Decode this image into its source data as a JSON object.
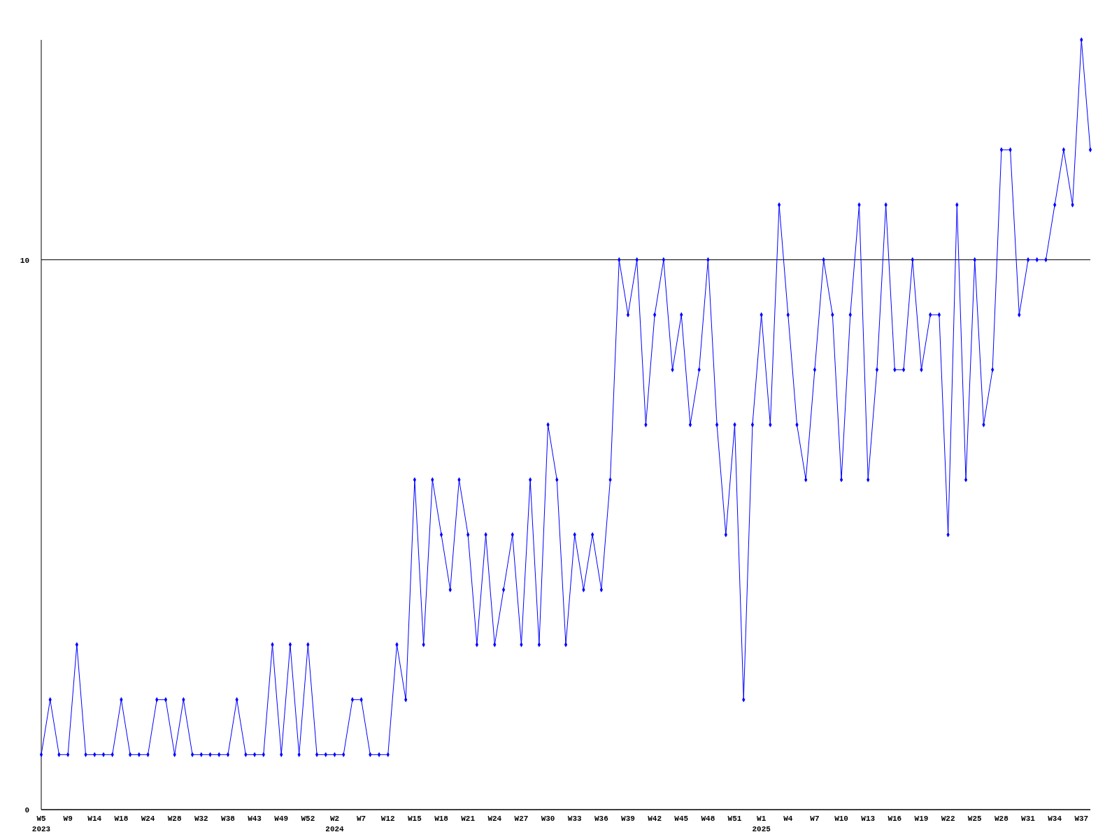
{
  "chart_data": {
    "type": "line",
    "categories": [
      "W5\n2023",
      null,
      null,
      "W9",
      null,
      null,
      "W14",
      null,
      null,
      "W18",
      null,
      null,
      "W24",
      null,
      null,
      "W28",
      null,
      null,
      "W32",
      null,
      null,
      "W38",
      null,
      null,
      "W43",
      null,
      null,
      "W49",
      null,
      null,
      "W52",
      null,
      null,
      "W2\n2024",
      null,
      null,
      "W7",
      null,
      null,
      "W12",
      null,
      null,
      "W15",
      null,
      null,
      "W18",
      null,
      null,
      "W21",
      null,
      null,
      "W24",
      null,
      null,
      "W27",
      null,
      null,
      "W30",
      null,
      null,
      "W33",
      null,
      null,
      "W36",
      null,
      null,
      "W39",
      null,
      null,
      "W42",
      null,
      null,
      "W45",
      null,
      null,
      "W48",
      null,
      null,
      "W51",
      null,
      null,
      "W1\n2025",
      null,
      null,
      "W4",
      null,
      null,
      "W7",
      null,
      null,
      "W10",
      null,
      null,
      "W13",
      null,
      null,
      "W16",
      null,
      null,
      "W19",
      null,
      null,
      "W22",
      null,
      null,
      "W25",
      null,
      null,
      "W28",
      null,
      null,
      "W31",
      null,
      null,
      "W34",
      null,
      null,
      "W37",
      null
    ],
    "series": [
      {
        "color": "#0000ff",
        "values": [
          1,
          2,
          1,
          1,
          3,
          1,
          1,
          1,
          1,
          2,
          1,
          1,
          1,
          2,
          2,
          1,
          2,
          1,
          1,
          1,
          1,
          1,
          2,
          1,
          1,
          1,
          3,
          1,
          3,
          1,
          3,
          1,
          1,
          1,
          1,
          2,
          2,
          1,
          1,
          1,
          3,
          2,
          6,
          3,
          6,
          5,
          4,
          6,
          5,
          3,
          5,
          3,
          4,
          5,
          3,
          6,
          3,
          7,
          6,
          3,
          5,
          4,
          5,
          4,
          6,
          10,
          9,
          10,
          7,
          9,
          10,
          8,
          9,
          7,
          8,
          10,
          7,
          5,
          7,
          2,
          7,
          9,
          7,
          11,
          9,
          7,
          6,
          8,
          10,
          9,
          6,
          9,
          11,
          6,
          8,
          11,
          8,
          8,
          10,
          8,
          9,
          9,
          5,
          11,
          6,
          10,
          7,
          8,
          12,
          12,
          9,
          10,
          10,
          10,
          11,
          12,
          11,
          14,
          12
        ]
      }
    ],
    "ylim": [
      0,
      14
    ],
    "yticks": [
      0,
      10
    ],
    "grid": "y",
    "marker": "diamond",
    "line_style": "solid"
  }
}
